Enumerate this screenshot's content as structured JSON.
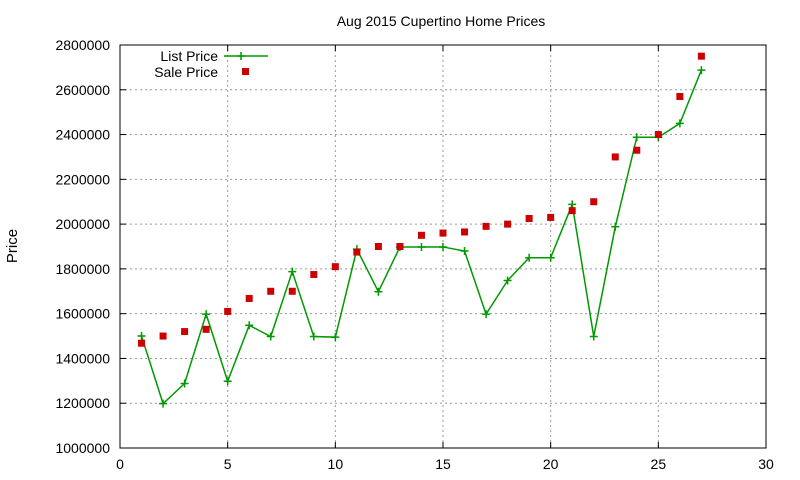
{
  "chart_data": {
    "type": "line",
    "title": "Aug 2015 Cupertino Home Prices",
    "xlabel": "",
    "ylabel": "Price",
    "xlim": [
      0,
      30
    ],
    "ylim": [
      1000000,
      2800000
    ],
    "x_ticks": [
      0,
      5,
      10,
      15,
      20,
      25,
      30
    ],
    "y_ticks": [
      1000000,
      1200000,
      1400000,
      1600000,
      1800000,
      2000000,
      2200000,
      2400000,
      2600000,
      2800000
    ],
    "grid": true,
    "legend_position": "top-left",
    "series": [
      {
        "name": "List Price",
        "style": "line-with-plus-markers",
        "color": "#009900",
        "x": [
          1,
          2,
          3,
          4,
          5,
          6,
          7,
          8,
          9,
          10,
          11,
          12,
          13,
          14,
          15,
          16,
          17,
          18,
          19,
          20,
          21,
          22,
          23,
          24,
          25,
          26,
          27
        ],
        "values": [
          1500000,
          1198000,
          1288000,
          1598000,
          1298000,
          1548000,
          1498000,
          1788000,
          1498000,
          1495000,
          1888000,
          1698000,
          1898000,
          1898000,
          1898000,
          1880000,
          1598000,
          1748000,
          1850000,
          1850000,
          2088000,
          1498000,
          1988000,
          2388000,
          2388000,
          2450000,
          2688000
        ]
      },
      {
        "name": "Sale Price",
        "style": "square-markers",
        "color": "#cc0000",
        "x": [
          1,
          2,
          3,
          4,
          5,
          6,
          7,
          8,
          9,
          10,
          11,
          12,
          13,
          14,
          15,
          16,
          17,
          18,
          19,
          20,
          21,
          22,
          23,
          24,
          25,
          26,
          27
        ],
        "values": [
          1468000,
          1500000,
          1520000,
          1530000,
          1610000,
          1668000,
          1700000,
          1700000,
          1775000,
          1810000,
          1875000,
          1900000,
          1900000,
          1950000,
          1960000,
          1965000,
          1990000,
          2000000,
          2025000,
          2030000,
          2060000,
          2100000,
          2300000,
          2330000,
          2400000,
          2570000,
          2750000
        ]
      }
    ]
  }
}
